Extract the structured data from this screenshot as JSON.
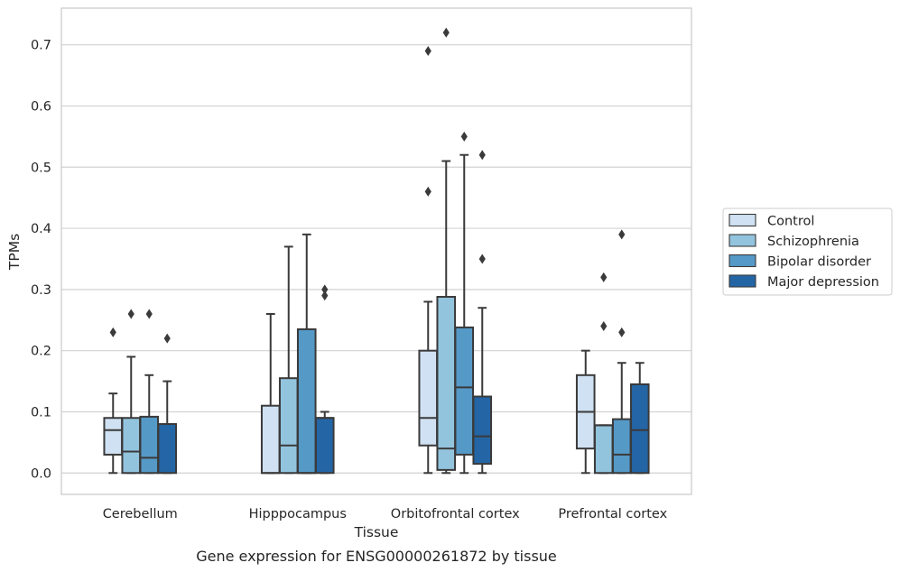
{
  "caption": "Gene expression for ENSG00000261872 by tissue",
  "chart_data": {
    "type": "box",
    "xlabel": "Tissue",
    "ylabel": "TPMs",
    "ylim": [
      -0.035,
      0.76
    ],
    "yticks": [
      "0.0",
      "0.1",
      "0.2",
      "0.3",
      "0.4",
      "0.5",
      "0.6",
      "0.7"
    ],
    "ytick_values": [
      0.0,
      0.1,
      0.2,
      0.3,
      0.4,
      0.5,
      0.6,
      0.7
    ],
    "grid": "horizontal",
    "legend_position": "right",
    "categories": [
      "Cerebellum",
      "Hipppocampus",
      "Orbitofrontal cortex",
      "Prefrontal cortex"
    ],
    "series": [
      {
        "name": "Control",
        "color": "#cfe1f2",
        "boxes": [
          {
            "whisker_low": 0.0,
            "q1": 0.03,
            "median": 0.07,
            "q3": 0.09,
            "whisker_high": 0.13,
            "outliers": [
              0.23
            ]
          },
          {
            "whisker_low": 0.0,
            "q1": 0.0,
            "median": 0.0,
            "q3": 0.11,
            "whisker_high": 0.26,
            "outliers": []
          },
          {
            "whisker_low": 0.0,
            "q1": 0.045,
            "median": 0.09,
            "q3": 0.2,
            "whisker_high": 0.28,
            "outliers": [
              0.46,
              0.69
            ]
          },
          {
            "whisker_low": 0.0,
            "q1": 0.04,
            "median": 0.1,
            "q3": 0.16,
            "whisker_high": 0.2,
            "outliers": []
          }
        ]
      },
      {
        "name": "Schizophrenia",
        "color": "#93c4de",
        "boxes": [
          {
            "whisker_low": 0.0,
            "q1": 0.0,
            "median": 0.035,
            "q3": 0.09,
            "whisker_high": 0.19,
            "outliers": [
              0.26
            ]
          },
          {
            "whisker_low": 0.0,
            "q1": 0.0,
            "median": 0.045,
            "q3": 0.155,
            "whisker_high": 0.37,
            "outliers": []
          },
          {
            "whisker_low": 0.0,
            "q1": 0.005,
            "median": 0.04,
            "q3": 0.288,
            "whisker_high": 0.51,
            "outliers": [
              0.72
            ]
          },
          {
            "whisker_low": 0.0,
            "q1": 0.0,
            "median": 0.078,
            "q3": 0.078,
            "whisker_high": 0.078,
            "outliers": [
              0.24,
              0.32
            ]
          }
        ]
      },
      {
        "name": "Bipolar disorder",
        "color": "#5599c7",
        "boxes": [
          {
            "whisker_low": 0.0,
            "q1": 0.0,
            "median": 0.025,
            "q3": 0.092,
            "whisker_high": 0.16,
            "outliers": [
              0.26
            ]
          },
          {
            "whisker_low": 0.0,
            "q1": 0.0,
            "median": 0.0,
            "q3": 0.235,
            "whisker_high": 0.39,
            "outliers": []
          },
          {
            "whisker_low": 0.0,
            "q1": 0.03,
            "median": 0.14,
            "q3": 0.238,
            "whisker_high": 0.52,
            "outliers": [
              0.55
            ]
          },
          {
            "whisker_low": 0.0,
            "q1": 0.0,
            "median": 0.03,
            "q3": 0.088,
            "whisker_high": 0.18,
            "outliers": [
              0.23,
              0.39
            ]
          }
        ]
      },
      {
        "name": "Major depression",
        "color": "#2465a5",
        "boxes": [
          {
            "whisker_low": 0.0,
            "q1": 0.0,
            "median": 0.08,
            "q3": 0.08,
            "whisker_high": 0.15,
            "outliers": [
              0.22
            ]
          },
          {
            "whisker_low": 0.0,
            "q1": 0.0,
            "median": 0.09,
            "q3": 0.09,
            "whisker_high": 0.1,
            "outliers": [
              0.29,
              0.3
            ]
          },
          {
            "whisker_low": 0.0,
            "q1": 0.015,
            "median": 0.06,
            "q3": 0.125,
            "whisker_high": 0.27,
            "outliers": [
              0.35,
              0.52
            ]
          },
          {
            "whisker_low": 0.0,
            "q1": 0.0,
            "median": 0.07,
            "q3": 0.145,
            "whisker_high": 0.18,
            "outliers": []
          }
        ]
      }
    ]
  }
}
